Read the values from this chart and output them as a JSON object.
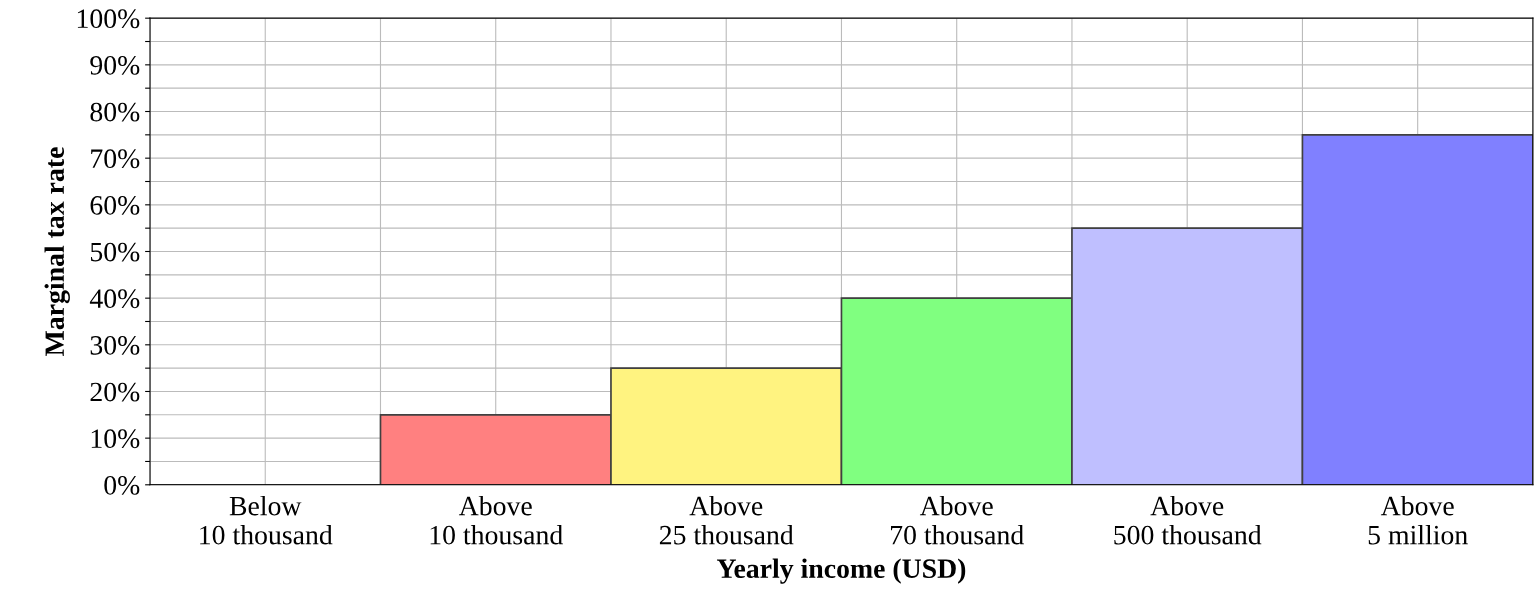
{
  "chart_data": {
    "type": "bar",
    "xlabel": "Yearly income (USD)",
    "ylabel": "Marginal tax rate",
    "categories": [
      "Below\n10 thousand",
      "Above\n10 thousand",
      "Above\n25 thousand",
      "Above\n70 thousand",
      "Above\n500 thousand",
      "Above\n5 million"
    ],
    "values": [
      0,
      15,
      25,
      40,
      55,
      75
    ],
    "colors": [
      "#404040",
      "#ff8080",
      "#fff380",
      "#80ff80",
      "#bfbfff",
      "#8080ff"
    ],
    "ylim": [
      0,
      100
    ],
    "yticks": [
      {
        "value": 0,
        "label": "0%"
      },
      {
        "value": 5,
        "label": null
      },
      {
        "value": 10,
        "label": "10%"
      },
      {
        "value": 15,
        "label": null
      },
      {
        "value": 20,
        "label": "20%"
      },
      {
        "value": 25,
        "label": null
      },
      {
        "value": 30,
        "label": "30%"
      },
      {
        "value": 35,
        "label": null
      },
      {
        "value": 40,
        "label": "40%"
      },
      {
        "value": 45,
        "label": null
      },
      {
        "value": 50,
        "label": "50%"
      },
      {
        "value": 55,
        "label": null
      },
      {
        "value": 60,
        "label": "60%"
      },
      {
        "value": 65,
        "label": null
      },
      {
        "value": 70,
        "label": "70%"
      },
      {
        "value": 75,
        "label": null
      },
      {
        "value": 80,
        "label": "80%"
      },
      {
        "value": 85,
        "label": null
      },
      {
        "value": 90,
        "label": "90%"
      },
      {
        "value": 95,
        "label": null
      },
      {
        "value": 100,
        "label": "100%"
      }
    ],
    "grid": true
  }
}
